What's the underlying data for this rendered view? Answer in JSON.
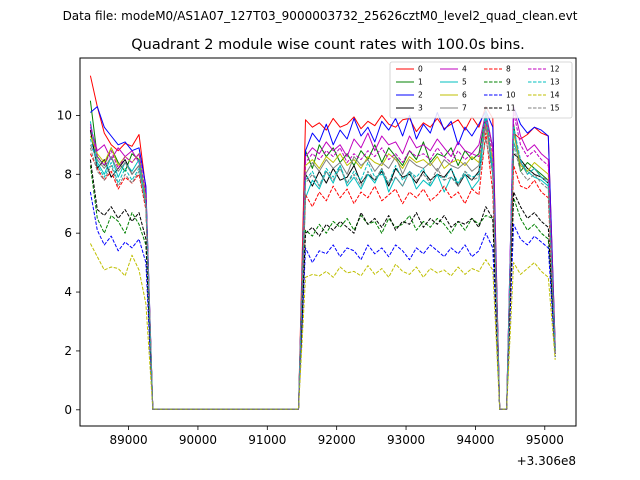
{
  "chart_data": {
    "type": "line",
    "suptitle": "Data file: modeM0/AS1A07_127T03_9000003732_25626cztM0_level2_quad_clean.evt",
    "title": "Quadrant 2 module wise count rates with 100.0s bins.",
    "xlabel": "",
    "ylabel": "",
    "x_offset_label": "+3.306e8",
    "xlim": [
      88300,
      95450
    ],
    "ylim": [
      -0.55,
      11.95
    ],
    "xticks": [
      89000,
      90000,
      91000,
      92000,
      93000,
      94000,
      95000
    ],
    "xtick_labels": [
      "89000",
      "90000",
      "91000",
      "92000",
      "93000",
      "94000",
      "95000"
    ],
    "yticks": [
      0,
      2,
      4,
      6,
      8,
      10
    ],
    "ytick_labels": [
      "0",
      "2",
      "4",
      "6",
      "8",
      "10"
    ],
    "legend_position": "top-right",
    "gap_start": 89350,
    "gap_end": 91450,
    "x_segment_1": [
      88450,
      88550,
      88650,
      88750,
      88850,
      88950,
      89050,
      89150,
      89250,
      89350
    ],
    "x_segment_2": [
      91450,
      91550,
      91650,
      91750,
      91850,
      91950,
      92050,
      92150,
      92250,
      92350,
      92450,
      92550,
      92650,
      92750,
      92850,
      92950,
      93050,
      93150,
      93250,
      93350,
      93450,
      93550,
      93650,
      93750,
      93850,
      93950,
      94050,
      94150,
      94250,
      94350,
      94450,
      94550,
      94650,
      94750,
      94850,
      94950,
      95050,
      95150
    ],
    "series": [
      {
        "name": "0",
        "color": "#ff0000",
        "dashed": false,
        "seg1": [
          11.35,
          10.3,
          9.4,
          9.0,
          8.8,
          9.05,
          8.95,
          9.35,
          7.5,
          0.02
        ],
        "seg2": [
          0.02,
          9.85,
          9.6,
          9.75,
          9.5,
          9.9,
          9.6,
          9.7,
          9.95,
          9.55,
          9.8,
          9.65,
          10.0,
          9.7,
          9.6,
          9.85,
          9.9,
          9.45,
          9.75,
          9.6,
          9.9,
          9.55,
          9.7,
          9.85,
          9.5,
          9.95,
          9.6,
          10.3,
          9.9,
          0.02,
          0.02,
          9.4,
          9.2,
          9.35,
          9.6,
          9.4,
          9.3,
          2.2
        ]
      },
      {
        "name": "1",
        "color": "#008000",
        "dashed": false,
        "seg1": [
          10.5,
          8.6,
          8.3,
          8.9,
          8.4,
          8.1,
          8.7,
          8.5,
          7.3,
          0.02
        ],
        "seg2": [
          0.02,
          8.8,
          8.2,
          9.0,
          8.6,
          8.9,
          8.4,
          8.7,
          8.3,
          8.8,
          8.5,
          9.0,
          8.4,
          8.9,
          8.6,
          8.3,
          8.8,
          8.5,
          9.1,
          8.4,
          8.7,
          8.6,
          8.9,
          8.3,
          8.8,
          8.5,
          8.7,
          10.0,
          8.9,
          0.02,
          0.02,
          9.7,
          8.1,
          8.4,
          8.2,
          8.0,
          7.8,
          2.1
        ]
      },
      {
        "name": "2",
        "color": "#0000ff",
        "dashed": false,
        "seg1": [
          10.1,
          10.3,
          9.6,
          9.3,
          9.0,
          9.1,
          8.8,
          8.9,
          7.6,
          0.02
        ],
        "seg2": [
          0.02,
          8.8,
          9.4,
          9.1,
          9.7,
          9.0,
          9.5,
          9.2,
          9.9,
          9.3,
          9.6,
          9.1,
          9.8,
          9.5,
          9.9,
          9.3,
          10.0,
          9.2,
          9.7,
          9.4,
          10.1,
          9.5,
          9.8,
          9.0,
          9.6,
          9.3,
          9.7,
          10.15,
          9.6,
          0.02,
          0.02,
          10.3,
          9.7,
          9.4,
          9.6,
          9.5,
          9.3,
          2.15
        ]
      },
      {
        "name": "3",
        "color": "#000000",
        "dashed": false,
        "seg1": [
          9.5,
          8.2,
          8.5,
          7.9,
          8.2,
          8.5,
          8.0,
          8.3,
          7.0,
          0.02
        ],
        "seg2": [
          0.02,
          8.0,
          7.6,
          8.1,
          7.7,
          8.2,
          7.8,
          7.9,
          8.3,
          7.7,
          8.0,
          7.8,
          8.1,
          7.6,
          8.2,
          7.9,
          8.0,
          7.7,
          8.1,
          7.8,
          8.0,
          7.9,
          8.2,
          7.6,
          8.0,
          7.8,
          8.1,
          9.8,
          8.0,
          0.02,
          0.02,
          8.7,
          8.5,
          8.2,
          8.0,
          7.9,
          7.7,
          2.0
        ]
      },
      {
        "name": "4",
        "color": "#bf00bf",
        "dashed": false,
        "seg1": [
          9.6,
          8.8,
          9.0,
          8.5,
          8.9,
          8.6,
          8.8,
          8.4,
          7.2,
          0.02
        ],
        "seg2": [
          0.02,
          8.6,
          8.9,
          8.7,
          9.1,
          8.8,
          9.0,
          8.6,
          9.2,
          8.9,
          9.4,
          8.8,
          9.3,
          9.0,
          9.1,
          8.7,
          9.3,
          8.9,
          9.0,
          8.8,
          9.2,
          8.9,
          8.6,
          9.1,
          8.8,
          8.7,
          9.0,
          10.1,
          8.9,
          0.02,
          0.02,
          10.3,
          9.3,
          8.8,
          9.0,
          8.7,
          8.5,
          2.0
        ]
      },
      {
        "name": "5",
        "color": "#00bfbf",
        "dashed": false,
        "seg1": [
          9.8,
          8.4,
          8.0,
          8.6,
          7.9,
          8.4,
          8.1,
          8.5,
          7.1,
          0.02
        ],
        "seg2": [
          0.02,
          7.2,
          7.8,
          7.5,
          8.1,
          7.7,
          8.3,
          7.6,
          7.9,
          7.5,
          8.0,
          7.7,
          8.2,
          7.4,
          7.9,
          7.6,
          8.1,
          7.5,
          7.8,
          7.6,
          8.0,
          7.4,
          7.9,
          7.7,
          8.0,
          7.5,
          7.8,
          9.9,
          8.0,
          0.02,
          0.02,
          9.1,
          8.4,
          8.1,
          7.9,
          7.8,
          7.6,
          2.0
        ]
      },
      {
        "name": "6",
        "color": "#bfbf00",
        "dashed": false,
        "seg1": [
          9.3,
          8.7,
          8.4,
          8.9,
          8.3,
          8.6,
          8.4,
          8.7,
          7.2,
          0.02
        ],
        "seg2": [
          0.02,
          8.3,
          8.5,
          8.2,
          8.6,
          8.4,
          8.7,
          8.3,
          8.5,
          8.2,
          8.6,
          8.4,
          8.3,
          8.7,
          8.5,
          8.2,
          8.6,
          8.4,
          8.5,
          8.3,
          8.6,
          8.2,
          8.4,
          8.5,
          8.3,
          8.6,
          8.4,
          9.7,
          8.5,
          0.02,
          0.02,
          9.4,
          8.3,
          8.1,
          8.4,
          8.2,
          8.0,
          2.0
        ]
      },
      {
        "name": "7",
        "color": "#808080",
        "dashed": false,
        "seg1": [
          9.0,
          8.5,
          8.2,
          8.6,
          8.1,
          8.4,
          8.0,
          8.3,
          7.0,
          0.02
        ],
        "seg2": [
          0.02,
          8.0,
          8.4,
          8.1,
          8.5,
          8.2,
          8.4,
          8.0,
          8.6,
          8.3,
          8.5,
          8.1,
          8.4,
          8.2,
          8.6,
          8.0,
          8.5,
          8.3,
          8.2,
          8.4,
          8.1,
          8.5,
          8.3,
          8.2,
          8.4,
          8.1,
          8.3,
          9.6,
          8.3,
          0.02,
          0.02,
          9.5,
          8.4,
          8.0,
          8.2,
          7.9,
          7.8,
          1.9
        ]
      },
      {
        "name": "8",
        "color": "#ff0000",
        "dashed": true,
        "seg1": [
          8.7,
          8.2,
          7.8,
          8.1,
          7.5,
          7.9,
          7.7,
          8.0,
          6.8,
          0.02
        ],
        "seg2": [
          0.02,
          7.3,
          6.9,
          7.4,
          7.1,
          7.6,
          7.2,
          7.5,
          7.0,
          7.4,
          7.2,
          7.6,
          7.1,
          7.3,
          7.5,
          7.0,
          7.4,
          7.2,
          7.5,
          7.1,
          7.3,
          7.6,
          7.2,
          7.4,
          7.0,
          7.5,
          7.3,
          9.4,
          7.4,
          0.02,
          0.02,
          8.3,
          7.6,
          7.5,
          7.8,
          7.4,
          7.2,
          1.9
        ]
      },
      {
        "name": "9",
        "color": "#008000",
        "dashed": true,
        "seg1": [
          8.3,
          6.5,
          6.0,
          6.6,
          6.4,
          6.0,
          6.7,
          6.3,
          5.6,
          0.02
        ],
        "seg2": [
          0.02,
          6.1,
          5.9,
          6.3,
          6.0,
          6.4,
          6.2,
          6.5,
          6.1,
          6.6,
          6.3,
          6.4,
          6.0,
          6.5,
          6.2,
          6.3,
          6.6,
          6.1,
          6.4,
          6.2,
          6.5,
          6.3,
          6.0,
          6.4,
          6.1,
          6.5,
          6.3,
          6.6,
          6.5,
          0.02,
          0.02,
          7.2,
          6.5,
          6.1,
          6.3,
          6.0,
          5.8,
          1.8
        ]
      },
      {
        "name": "10",
        "color": "#0000ff",
        "dashed": true,
        "seg1": [
          7.4,
          6.1,
          5.6,
          5.9,
          5.4,
          5.7,
          5.5,
          5.8,
          5.0,
          0.02
        ],
        "seg2": [
          0.02,
          5.5,
          5.0,
          5.4,
          5.3,
          5.6,
          5.2,
          5.5,
          5.4,
          5.1,
          5.6,
          5.3,
          5.5,
          5.2,
          5.6,
          5.4,
          5.1,
          5.5,
          5.3,
          5.6,
          5.4,
          5.2,
          5.5,
          5.3,
          5.6,
          5.2,
          5.4,
          6.0,
          5.5,
          0.02,
          0.02,
          6.3,
          5.8,
          5.6,
          5.9,
          5.7,
          5.5,
          1.8
        ]
      },
      {
        "name": "11",
        "color": "#000000",
        "dashed": true,
        "seg1": [
          8.5,
          6.8,
          6.6,
          6.9,
          6.5,
          6.8,
          6.4,
          6.7,
          5.8,
          0.02
        ],
        "seg2": [
          0.02,
          6.0,
          6.2,
          5.9,
          6.3,
          6.1,
          6.4,
          6.2,
          6.0,
          6.7,
          6.3,
          6.5,
          6.2,
          6.6,
          6.1,
          6.4,
          6.3,
          6.7,
          6.2,
          6.5,
          6.3,
          6.6,
          6.2,
          6.4,
          6.3,
          6.5,
          6.2,
          6.9,
          6.5,
          0.02,
          0.02,
          7.4,
          6.9,
          6.5,
          6.7,
          6.4,
          6.2,
          1.9
        ]
      },
      {
        "name": "12",
        "color": "#bf00bf",
        "dashed": true,
        "seg1": [
          9.7,
          8.6,
          8.3,
          8.8,
          8.2,
          8.6,
          8.4,
          8.7,
          7.3,
          0.02
        ],
        "seg2": [
          0.02,
          8.4,
          8.7,
          8.5,
          8.8,
          8.6,
          8.9,
          8.4,
          8.7,
          8.5,
          8.8,
          8.6,
          8.9,
          8.5,
          8.7,
          8.4,
          8.8,
          8.6,
          8.7,
          8.5,
          8.9,
          8.6,
          8.4,
          8.8,
          8.5,
          8.7,
          8.6,
          9.8,
          8.7,
          0.02,
          0.02,
          10.1,
          9.0,
          8.6,
          8.8,
          8.5,
          8.3,
          2.0
        ]
      },
      {
        "name": "13",
        "color": "#00bfbf",
        "dashed": true,
        "seg1": [
          9.2,
          8.3,
          7.9,
          8.4,
          7.7,
          8.2,
          7.8,
          8.2,
          7.0,
          0.02
        ],
        "seg2": [
          0.02,
          7.8,
          8.1,
          7.6,
          8.2,
          7.9,
          8.3,
          7.7,
          8.1,
          7.8,
          8.4,
          7.9,
          8.0,
          7.7,
          8.3,
          7.8,
          8.1,
          7.9,
          8.2,
          7.6,
          8.0,
          7.8,
          8.2,
          7.7,
          8.1,
          7.9,
          8.0,
          10.2,
          8.1,
          0.02,
          0.02,
          9.6,
          8.5,
          8.0,
          8.2,
          7.9,
          7.7,
          2.0
        ]
      },
      {
        "name": "14",
        "color": "#bfbf00",
        "dashed": true,
        "seg1": [
          5.65,
          5.2,
          4.75,
          4.85,
          4.8,
          4.55,
          5.25,
          4.75,
          3.6,
          0.02
        ],
        "seg2": [
          0.02,
          4.5,
          4.6,
          4.55,
          4.7,
          4.5,
          4.85,
          4.65,
          4.7,
          4.55,
          4.9,
          4.6,
          4.8,
          4.5,
          4.95,
          4.7,
          4.6,
          4.85,
          4.5,
          4.8,
          4.65,
          4.75,
          4.55,
          4.85,
          4.6,
          4.8,
          4.7,
          5.1,
          4.75,
          0.02,
          0.02,
          5.0,
          4.6,
          4.8,
          5.0,
          4.7,
          4.5,
          1.7
        ]
      },
      {
        "name": "15",
        "color": "#808080",
        "dashed": true,
        "seg1": [
          8.9,
          8.1,
          7.8,
          8.3,
          7.6,
          8.0,
          7.7,
          8.1,
          6.9,
          0.02
        ],
        "seg2": [
          0.02,
          7.7,
          8.0,
          7.6,
          8.1,
          7.8,
          8.2,
          7.7,
          8.0,
          7.6,
          8.1,
          7.8,
          8.2,
          7.7,
          7.9,
          7.6,
          8.1,
          7.8,
          8.0,
          7.7,
          8.2,
          7.8,
          7.9,
          7.6,
          8.1,
          7.8,
          7.9,
          9.2,
          8.0,
          0.02,
          0.02,
          9.0,
          8.1,
          7.8,
          8.0,
          7.7,
          7.5,
          1.9
        ]
      }
    ]
  }
}
